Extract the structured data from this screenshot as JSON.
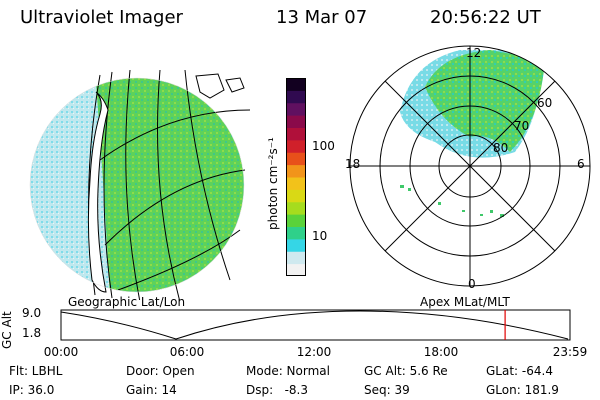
{
  "header": {
    "instrument": "Ultraviolet Imager",
    "date": "13 Mar 07",
    "time": "20:56:22 UT"
  },
  "colorbar": {
    "label": "photon cm⁻²s⁻¹",
    "tick_labels": [
      "100",
      "10"
    ],
    "scale": "log",
    "colors": [
      "#f2f2f2",
      "#cfe9ef",
      "#35d6e6",
      "#2fd08a",
      "#5ad23a",
      "#a6dc1e",
      "#d9d915",
      "#f2c21a",
      "#f2941a",
      "#e8501a",
      "#d0202a",
      "#b0103a",
      "#8a0a4a",
      "#601060",
      "#300a50",
      "#120020"
    ]
  },
  "left_map": {
    "title": "Geographic Lat/Lon"
  },
  "polar_map": {
    "title": "Apex MLat/MLT",
    "mlt_labels": {
      "top": "12",
      "left": "18",
      "right": "6",
      "bottom": "0"
    },
    "lat_labels": [
      "60",
      "70",
      "80"
    ]
  },
  "altitude_plot": {
    "ylabel": "GC Alt",
    "y_ticks": [
      "9.0",
      "1.8"
    ],
    "x_ticks": [
      "00:00",
      "06:00",
      "12:00",
      "18:00",
      "23:59"
    ],
    "current_time_fraction": 0.8725
  },
  "status": {
    "row1": {
      "filter": "Flt: LBHL",
      "door": "Door: Open",
      "mode": "Mode: Normal",
      "gc_alt": "GC Alt: 5.6 Re",
      "glat": "GLat: -64.4"
    },
    "row2": {
      "ip": "IP: 36.0",
      "gain": "Gain: 14",
      "dsp": "Dsp:   -8.3",
      "seq": "Seq: 39",
      "glon": "GLon: 181.9"
    }
  }
}
